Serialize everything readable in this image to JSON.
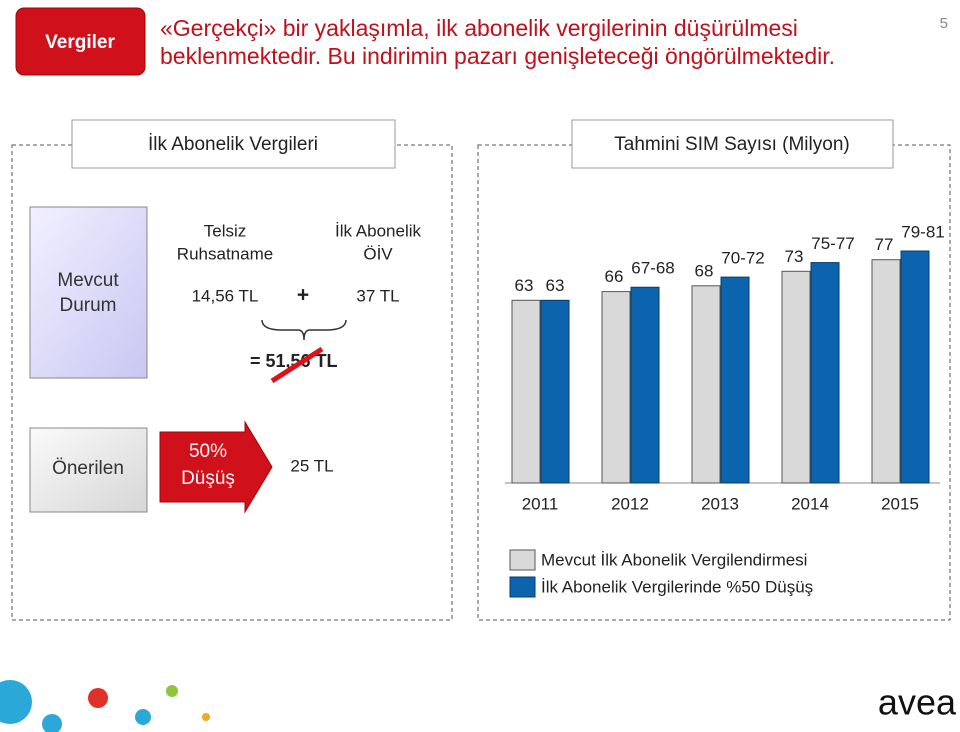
{
  "header": {
    "tag": "Vergiler",
    "title_lines": [
      "«Gerçekçi» bir yaklaşımla, ilk abonelik vergilerinin düşürülmesi",
      "beklenmektedir. Bu indirimin pazarı genişleteceği öngörülmektedir."
    ],
    "page_number": "5"
  },
  "left_panel": {
    "title": "İlk Abonelik Vergileri",
    "current": {
      "label_lines": [
        "Mevcut",
        "Durum"
      ],
      "col1_lines": [
        "Telsiz",
        "Ruhsatname"
      ],
      "col2_lines": [
        "İlk Abonelik",
        "ÖİV"
      ],
      "col1_value": "14,56 TL",
      "plus": "+",
      "col2_value": "37 TL",
      "total": "= 51,56 TL"
    },
    "proposed": {
      "label": "Önerilen",
      "arrow_lines": [
        "50%",
        "Düşüş"
      ],
      "value": "25 TL"
    }
  },
  "logo": "avea",
  "chart_data": {
    "type": "bar",
    "title": "Tahmini SIM Sayısı",
    "unit": "(Milyon)",
    "categories": [
      "2011",
      "2012",
      "2013",
      "2014",
      "2015"
    ],
    "series": [
      {
        "name": "Mevcut İlk Abonelik Vergilendirmesi",
        "color": "#d9d9d9",
        "values": [
          63,
          66,
          68,
          73,
          77
        ]
      },
      {
        "name": "İlk Abonelik Vergilerinde %50 Düşüş",
        "color": "#0b64ad",
        "values": [
          63,
          67.5,
          71,
          76,
          80
        ],
        "value_labels": [
          "63",
          "67-68",
          "70-72",
          "75-77",
          "79-81"
        ]
      }
    ],
    "legend": "bottom"
  }
}
